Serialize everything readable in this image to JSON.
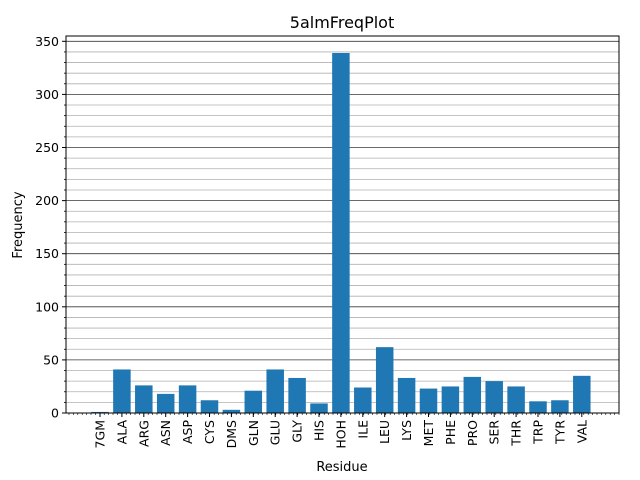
{
  "chart_data": {
    "type": "bar",
    "title": "5almFreqPlot",
    "xlabel": "Residue",
    "ylabel": "Frequency",
    "categories": [
      "7GM",
      "ALA",
      "ARG",
      "ASN",
      "ASP",
      "CYS",
      "DMS",
      "GLN",
      "GLU",
      "GLY",
      "HIS",
      "HOH",
      "ILE",
      "LEU",
      "LYS",
      "MET",
      "PHE",
      "PRO",
      "SER",
      "THR",
      "TRP",
      "TYR",
      "VAL"
    ],
    "values": [
      1,
      41,
      26,
      18,
      26,
      12,
      3,
      21,
      41,
      33,
      9,
      339,
      24,
      62,
      33,
      23,
      25,
      34,
      30,
      25,
      11,
      12,
      35
    ],
    "ylim": [
      0,
      355
    ],
    "yticks": [
      0,
      50,
      100,
      150,
      200,
      250,
      300,
      350
    ],
    "ytick_labels": [
      "0",
      "50",
      "100",
      "150",
      "200",
      "250",
      "300",
      "350"
    ],
    "grid": {
      "major": true,
      "minor": true
    },
    "bar_color": "#1f77b4"
  }
}
